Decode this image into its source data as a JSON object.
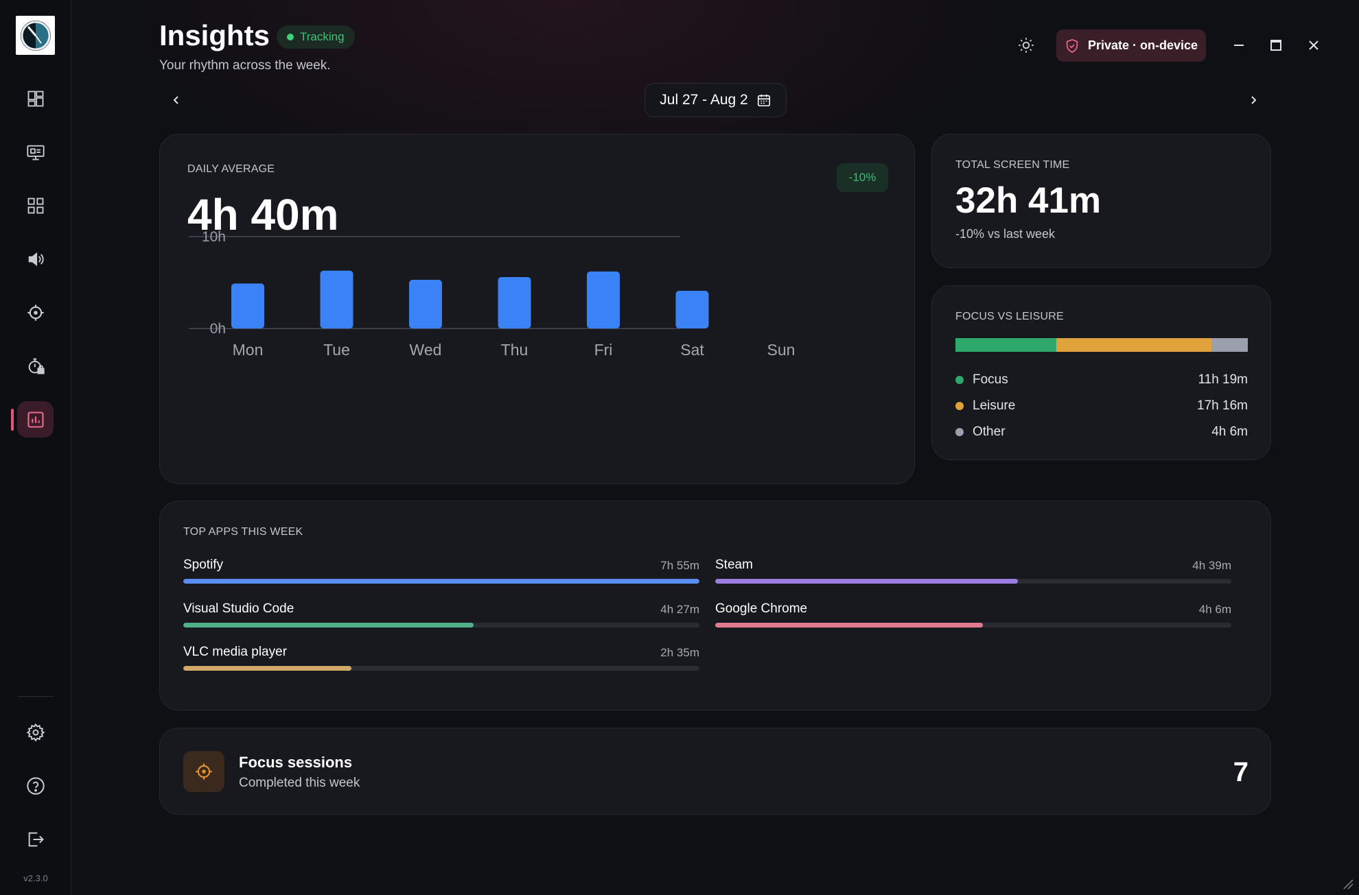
{
  "header": {
    "title": "Insights",
    "tracking_label": "Tracking",
    "subtitle": "Your rhythm across the week.",
    "private_label": "Private · on-device"
  },
  "date_range": {
    "label": "Jul 27 - Aug 2"
  },
  "sidebar": {
    "items": [
      {
        "name": "dashboard",
        "icon": "dashboard-icon"
      },
      {
        "name": "monitor",
        "icon": "monitor-icon"
      },
      {
        "name": "apps",
        "icon": "apps-grid-icon"
      },
      {
        "name": "audio",
        "icon": "speaker-icon"
      },
      {
        "name": "focus",
        "icon": "crosshair-icon"
      },
      {
        "name": "timer-lock",
        "icon": "timer-lock-icon"
      },
      {
        "name": "insights",
        "icon": "chart-icon",
        "active": true
      }
    ],
    "bottom": [
      {
        "name": "settings",
        "icon": "gear-icon"
      },
      {
        "name": "help",
        "icon": "help-icon"
      },
      {
        "name": "exit",
        "icon": "exit-icon"
      }
    ],
    "version": "v2.3.0"
  },
  "daily": {
    "label": "DAILY AVERAGE",
    "value": "4h 40m",
    "change": "-10%"
  },
  "chart_data": {
    "type": "bar",
    "categories": [
      "Mon",
      "Tue",
      "Wed",
      "Thu",
      "Fri",
      "Sat",
      "Sun"
    ],
    "values": [
      4.9,
      6.3,
      5.3,
      5.6,
      6.2,
      4.1,
      0
    ],
    "y_tick_labels": [
      "10h",
      "0h"
    ],
    "ylim": [
      0,
      10
    ],
    "grid": true,
    "bar_color": "#3b82f6"
  },
  "total": {
    "label": "TOTAL SCREEN TIME",
    "value": "32h 41m",
    "sub": "-10% vs last week"
  },
  "focus_leisure": {
    "label": "FOCUS VS LEISURE",
    "segments": [
      {
        "name": "Focus",
        "value": "11h 19m",
        "fraction": 0.346,
        "color": "#2fa86c"
      },
      {
        "name": "Leisure",
        "value": "17h 16m",
        "fraction": 0.529,
        "color": "#e0a33c"
      },
      {
        "name": "Other",
        "value": "4h 6m",
        "fraction": 0.125,
        "color": "#9aa0ad"
      }
    ]
  },
  "top_apps": {
    "label": "TOP APPS THIS WEEK",
    "apps": [
      {
        "name": "Spotify",
        "time": "7h 55m",
        "fraction": 1.0,
        "color": "#5b8def"
      },
      {
        "name": "Steam",
        "time": "4h 39m",
        "fraction": 0.587,
        "color": "#9b7fe0"
      },
      {
        "name": "Visual Studio Code",
        "time": "4h 27m",
        "fraction": 0.562,
        "color": "#4fb08a"
      },
      {
        "name": "Google Chrome",
        "time": "4h 6m",
        "fraction": 0.518,
        "color": "#e07a8e"
      },
      {
        "name": "VLC media player",
        "time": "2h 35m",
        "fraction": 0.326,
        "color": "#d0a868"
      }
    ]
  },
  "sessions": {
    "title": "Focus sessions",
    "sub": "Completed this week",
    "count": "7"
  }
}
